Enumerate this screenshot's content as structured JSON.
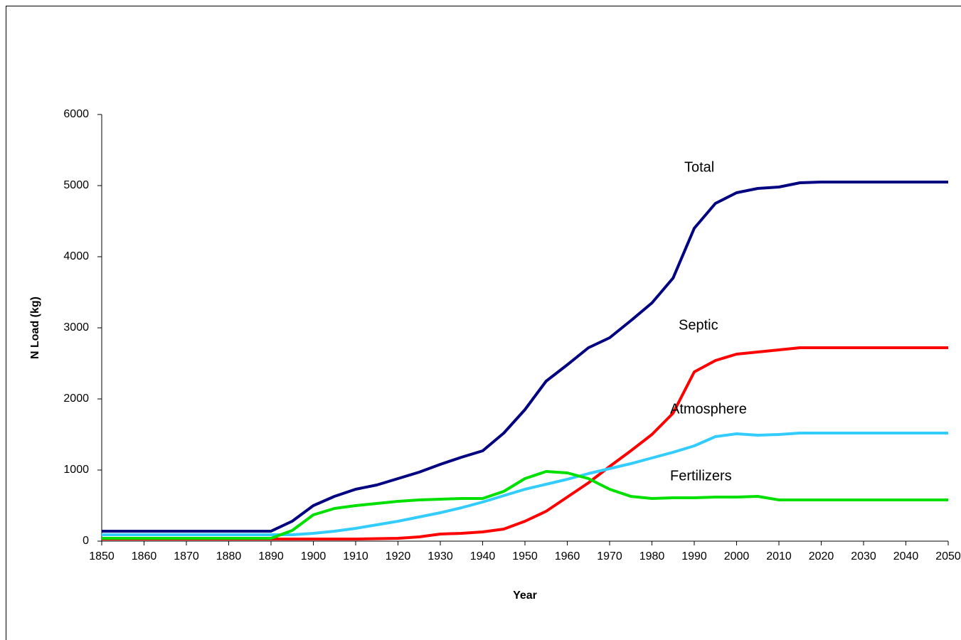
{
  "chart_data": {
    "type": "line",
    "x_label": "Year",
    "y_label": "N Load (kg)",
    "x": [
      1850,
      1855,
      1860,
      1865,
      1870,
      1875,
      1880,
      1885,
      1890,
      1895,
      1900,
      1905,
      1910,
      1915,
      1920,
      1925,
      1930,
      1935,
      1940,
      1945,
      1950,
      1955,
      1960,
      1965,
      1970,
      1975,
      1980,
      1985,
      1990,
      1995,
      2000,
      2005,
      2010,
      2015,
      2020,
      2025,
      2030,
      2035,
      2040,
      2045,
      2050
    ],
    "series": [
      {
        "name": "Total",
        "color": "#000080",
        "values": [
          140,
          140,
          140,
          140,
          140,
          140,
          140,
          140,
          140,
          280,
          500,
          630,
          730,
          790,
          880,
          970,
          1080,
          1180,
          1270,
          1520,
          1850,
          2250,
          2480,
          2720,
          2860,
          3100,
          3350,
          3700,
          4400,
          4750,
          4900,
          4960,
          4980,
          5040,
          5050,
          5050,
          5050,
          5050,
          5050,
          5050,
          5050
        ]
      },
      {
        "name": "Septic",
        "color": "#ff0000",
        "values": [
          30,
          30,
          30,
          30,
          30,
          30,
          30,
          30,
          30,
          30,
          30,
          30,
          30,
          35,
          40,
          60,
          100,
          110,
          130,
          170,
          280,
          420,
          620,
          820,
          1050,
          1270,
          1500,
          1800,
          2380,
          2540,
          2630,
          2660,
          2690,
          2720,
          2720,
          2720,
          2720,
          2720,
          2720,
          2720,
          2720
        ]
      },
      {
        "name": "Atmosphere",
        "color": "#33ccff",
        "values": [
          90,
          90,
          90,
          90,
          90,
          90,
          90,
          90,
          90,
          90,
          110,
          140,
          180,
          230,
          280,
          340,
          400,
          470,
          550,
          640,
          730,
          800,
          870,
          950,
          1020,
          1090,
          1170,
          1250,
          1340,
          1470,
          1510,
          1490,
          1500,
          1520,
          1520,
          1520,
          1520,
          1520,
          1520,
          1520,
          1520
        ]
      },
      {
        "name": "Fertilizers",
        "color": "#00e000",
        "values": [
          40,
          40,
          40,
          40,
          40,
          40,
          40,
          40,
          40,
          150,
          370,
          460,
          500,
          530,
          560,
          580,
          590,
          600,
          600,
          700,
          880,
          980,
          960,
          880,
          730,
          630,
          600,
          610,
          610,
          620,
          620,
          630,
          580,
          580,
          580,
          580,
          580,
          580,
          580,
          580,
          580
        ]
      }
    ],
    "xlim": [
      1850,
      2050
    ],
    "xticks": [
      1850,
      1860,
      1870,
      1880,
      1890,
      1900,
      1910,
      1920,
      1930,
      1940,
      1950,
      1960,
      1970,
      1980,
      1990,
      2000,
      2010,
      2020,
      2030,
      2040,
      2050
    ],
    "ylim": [
      0,
      6000
    ],
    "yticks": [
      0,
      1000,
      2000,
      3000,
      4000,
      5000,
      6000
    ]
  }
}
